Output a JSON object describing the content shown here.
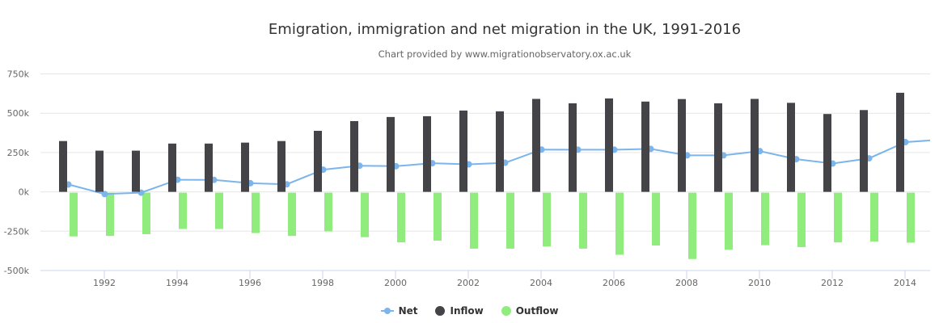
{
  "chart_data": {
    "type": "bar",
    "title": "Emigration, immigration and net migration in the UK, 1991-2016",
    "subtitle": "Chart provided by www.migrationobservatory.ox.ac.uk",
    "xlabel": "",
    "ylabel": "",
    "ylim": [
      -500,
      750
    ],
    "yticks": [
      -500,
      -250,
      0,
      250,
      500,
      750
    ],
    "ytick_labels": [
      "-500k",
      "-250k",
      "0k",
      "250k",
      "500k",
      "750k"
    ],
    "xticks": [
      1992,
      1994,
      1996,
      1998,
      2000,
      2002,
      2004,
      2006,
      2008,
      2010,
      2012,
      2014
    ],
    "xtick_labels": [
      "1992",
      "1994",
      "1996",
      "1998",
      "2000",
      "2002",
      "2004",
      "2006",
      "2008",
      "2010",
      "2012",
      "2014"
    ],
    "grid": true,
    "legend_position": "bottom-center",
    "units": "thousands",
    "x": [
      1991,
      1992,
      1993,
      1994,
      1995,
      1996,
      1997,
      1998,
      1999,
      2000,
      2001,
      2002,
      2003,
      2004,
      2005,
      2006,
      2007,
      2008,
      2009,
      2010,
      2011,
      2012,
      2013,
      2014,
      2015
    ],
    "series": [
      {
        "name": "Net",
        "type": "line",
        "color": "#7cb5ec",
        "values": [
          47,
          -14,
          -5,
          77,
          76,
          55,
          48,
          141,
          166,
          163,
          182,
          175,
          185,
          269,
          268,
          268,
          273,
          232,
          232,
          259,
          208,
          180,
          213,
          316,
          332
        ]
      },
      {
        "name": "Inflow",
        "type": "bar",
        "color": "#434348",
        "values": [
          323,
          262,
          262,
          307,
          307,
          313,
          323,
          388,
          450,
          476,
          481,
          517,
          512,
          591,
          563,
          594,
          574,
          590,
          563,
          591,
          566,
          495,
          520,
          630,
          null
        ]
      },
      {
        "name": "Outflow",
        "type": "bar",
        "color": "#90ed7d",
        "values": [
          -283,
          -280,
          -269,
          -236,
          -236,
          -262,
          -280,
          -251,
          -288,
          -321,
          -310,
          -361,
          -361,
          -347,
          -361,
          -400,
          -341,
          -427,
          -368,
          -339,
          -351,
          -321,
          -316,
          -323,
          null
        ]
      }
    ]
  },
  "legend": {
    "items": [
      {
        "label": "Net",
        "color": "#7cb5ec"
      },
      {
        "label": "Inflow",
        "color": "#434348"
      },
      {
        "label": "Outflow",
        "color": "#90ed7d"
      }
    ]
  }
}
